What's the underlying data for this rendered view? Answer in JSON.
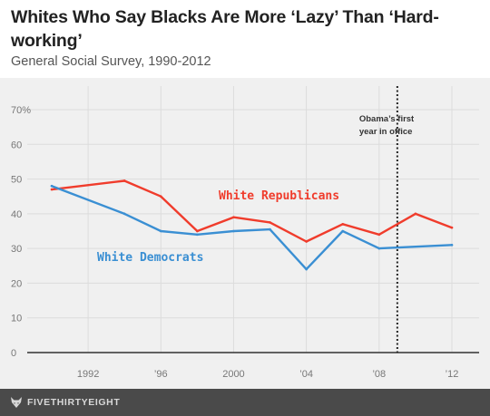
{
  "header": {
    "title": "Whites Who Say Blacks Are More ‘Lazy’ Than ‘Hard-working’",
    "subtitle": "General Social Survey, 1990-2012"
  },
  "footer": {
    "brand": "FIVETHIRTYEIGHT",
    "logo_icon": "fivethirtyeight-fox-icon"
  },
  "chart_data": {
    "type": "line",
    "title": "Whites Who Say Blacks Are More ‘Lazy’ Than ‘Hard-working’",
    "subtitle": "General Social Survey, 1990-2012",
    "xlim": [
      1988,
      2014
    ],
    "ylim": [
      0,
      75
    ],
    "x_ticks": [
      1992,
      1996,
      2000,
      2004,
      2008,
      2012
    ],
    "x_tick_labels": [
      "1992",
      "’96",
      "2000",
      "’04",
      "’08",
      "’12"
    ],
    "y_ticks": [
      0,
      10,
      20,
      30,
      40,
      50,
      60,
      70
    ],
    "y_tick_labels": [
      "0",
      "10",
      "20",
      "30",
      "40",
      "50",
      "60",
      "70%"
    ],
    "grid": true,
    "series": [
      {
        "name": "White Republicans",
        "color": "#f03c2c",
        "x": [
          1990,
          1994,
          1996,
          1998,
          2000,
          2002,
          2004,
          2006,
          2008,
          2010,
          2012
        ],
        "values": [
          47,
          49.5,
          45,
          35,
          39,
          37.5,
          32,
          37,
          34,
          40,
          36
        ]
      },
      {
        "name": "White Democrats",
        "color": "#3a8fd3",
        "x": [
          1990,
          1994,
          1996,
          1998,
          2000,
          2002,
          2004,
          2006,
          2008,
          2012
        ],
        "values": [
          48,
          40,
          35,
          34,
          35,
          35.5,
          24,
          35,
          30,
          31
        ]
      }
    ],
    "annotations": [
      {
        "text_lines": [
          "Obama’s first",
          "year in office"
        ],
        "x": 2009,
        "style": "dotted-vertical-line"
      }
    ]
  }
}
